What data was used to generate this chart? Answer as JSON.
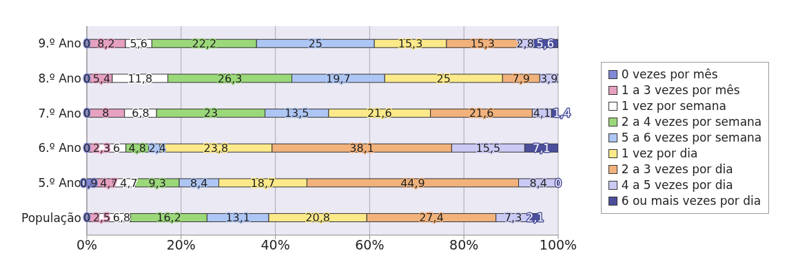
{
  "chart_data": {
    "type": "bar",
    "orientation": "horizontal",
    "stacked": true,
    "categories": [
      "9.º Ano",
      "8.º Ano",
      "7.º Ano",
      "6.º Ano",
      "5.º Ano",
      "População"
    ],
    "xlim": [
      0,
      100
    ],
    "xticks": [
      {
        "value": 0,
        "label": "0%"
      },
      {
        "value": 20,
        "label": "20%"
      },
      {
        "value": 40,
        "label": "40%"
      },
      {
        "value": 60,
        "label": "60%"
      },
      {
        "value": 80,
        "label": "80%"
      },
      {
        "value": 100,
        "label": "100%"
      }
    ],
    "grid": "x",
    "legend": "right",
    "series": [
      {
        "name": "0 vezes por mês",
        "color": "#8088d8",
        "values": [
          0,
          0,
          0,
          0,
          0.9,
          0
        ],
        "value_labels": [
          "0",
          "0",
          "0",
          "0",
          "0,9",
          "0"
        ]
      },
      {
        "name": "1 a 3 vezes por mês",
        "color": "#e6a0c0",
        "values": [
          8.2,
          5.4,
          8,
          2.3,
          4.7,
          2.5
        ],
        "value_labels": [
          "8,2",
          "5,4",
          "8",
          "2,3",
          "4,7",
          "2,5"
        ]
      },
      {
        "name": "1 vez por semana",
        "color": "#ffffff",
        "values": [
          5.6,
          11.8,
          6.8,
          6,
          4.7,
          6.8
        ],
        "value_labels": [
          "5,6",
          "11,8",
          "6,8",
          "6",
          "4,7",
          "6,8"
        ]
      },
      {
        "name": "2 a 4 vezes por semana",
        "color": "#9bd87a",
        "values": [
          22.2,
          26.3,
          23,
          4.8,
          9.3,
          16.2
        ],
        "value_labels": [
          "22,2",
          "26,3",
          "23",
          "4,8",
          "9,3",
          "16,2"
        ]
      },
      {
        "name": "5 a 6 vezes por semana",
        "color": "#aec6f4",
        "values": [
          25,
          19.7,
          13.5,
          2.4,
          8.4,
          13.1
        ],
        "value_labels": [
          "25",
          "19,7",
          "13,5",
          "2,4",
          "8,4",
          "13,1"
        ]
      },
      {
        "name": "1 vez por dia",
        "color": "#fbe98a",
        "values": [
          15.3,
          25,
          21.6,
          23.8,
          18.7,
          20.8
        ],
        "value_labels": [
          "15,3",
          "25",
          "21,6",
          "23,8",
          "18,7",
          "20,8"
        ]
      },
      {
        "name": "2 a 3 vezes por dia",
        "color": "#f2b27c",
        "values": [
          15.3,
          7.9,
          21.6,
          38.1,
          44.9,
          27.4
        ],
        "value_labels": [
          "15,3",
          "7,9",
          "21,6",
          "38,1",
          "44,9",
          "27,4"
        ]
      },
      {
        "name": "4 a 5 vezes por dia",
        "color": "#cacaf4",
        "values": [
          2.8,
          3.9,
          4.1,
          15.5,
          8.4,
          7.3
        ],
        "value_labels": [
          "2,8",
          "3,9",
          "4,1",
          "15,5",
          "8,4",
          "7,3"
        ]
      },
      {
        "name": "6 ou mais vezes por dia",
        "color": "#4b4f9c",
        "values": [
          5.6,
          0,
          1.4,
          7.1,
          0,
          2.1
        ],
        "value_labels": [
          "5,6",
          null,
          "1,4",
          "7,1",
          "0",
          "2,1"
        ]
      }
    ]
  }
}
